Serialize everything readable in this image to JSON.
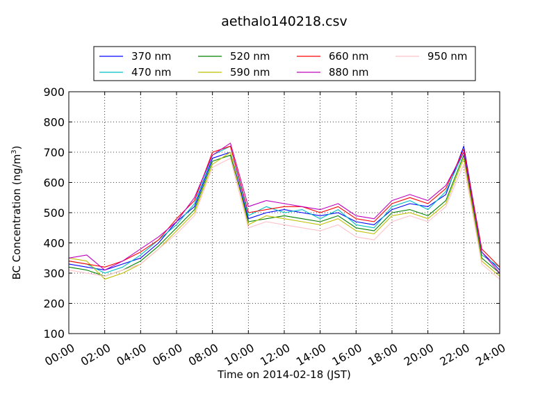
{
  "chart_data": {
    "type": "line",
    "title": "aethalo140218.csv",
    "xlabel": "Time on 2014-02-18 (JST)",
    "ylabel": "BC Concentration (ng/m",
    "ylabel_sup": "3",
    "ylabel_end": ")",
    "xlim": [
      "00:00",
      "24:00"
    ],
    "ylim": [
      100,
      900
    ],
    "grid": true,
    "legend_position": "top",
    "x_ticks": [
      "00:00",
      "02:00",
      "04:00",
      "06:00",
      "08:00",
      "10:00",
      "12:00",
      "14:00",
      "16:00",
      "18:00",
      "20:00",
      "22:00",
      "24:00"
    ],
    "y_ticks": [
      "100",
      "200",
      "300",
      "400",
      "500",
      "600",
      "700",
      "800",
      "900"
    ],
    "x": [
      0,
      1,
      2,
      3,
      4,
      5,
      6,
      7,
      8,
      9,
      10,
      11,
      12,
      13,
      14,
      15,
      16,
      17,
      18,
      19,
      20,
      21,
      22,
      23,
      24
    ],
    "series": [
      {
        "name": "370 nm",
        "color": "#0000ff",
        "values": [
          330,
          320,
          310,
          330,
          350,
          400,
          470,
          520,
          680,
          700,
          480,
          500,
          510,
          500,
          490,
          500,
          470,
          460,
          510,
          530,
          520,
          560,
          720,
          370,
          310
        ]
      },
      {
        "name": "470 nm",
        "color": "#00bfbf",
        "values": [
          340,
          330,
          300,
          320,
          360,
          410,
          460,
          530,
          690,
          720,
          490,
          520,
          500,
          510,
          480,
          510,
          460,
          450,
          520,
          540,
          510,
          570,
          700,
          360,
          320
        ]
      },
      {
        "name": "520 nm",
        "color": "#008000",
        "values": [
          320,
          310,
          290,
          310,
          340,
          390,
          450,
          510,
          670,
          690,
          470,
          480,
          490,
          480,
          470,
          490,
          450,
          440,
          500,
          510,
          490,
          540,
          690,
          350,
          300
        ]
      },
      {
        "name": "590 nm",
        "color": "#bfbf00",
        "values": [
          350,
          340,
          280,
          300,
          330,
          380,
          440,
          500,
          660,
          700,
          460,
          490,
          480,
          470,
          460,
          480,
          440,
          430,
          490,
          500,
          480,
          530,
          680,
          340,
          290
        ]
      },
      {
        "name": "660 nm",
        "color": "#ff0000",
        "values": [
          340,
          330,
          320,
          340,
          370,
          410,
          480,
          540,
          700,
          720,
          500,
          510,
          520,
          520,
          500,
          520,
          480,
          470,
          530,
          550,
          530,
          580,
          710,
          380,
          320
        ]
      },
      {
        "name": "880 nm",
        "color": "#bf00bf",
        "values": [
          350,
          360,
          310,
          340,
          380,
          420,
          470,
          550,
          690,
          730,
          520,
          540,
          530,
          520,
          510,
          530,
          490,
          480,
          540,
          560,
          540,
          590,
          700,
          370,
          300
        ]
      },
      {
        "name": "950 nm",
        "color": "#ffc0cb",
        "values": [
          310,
          300,
          290,
          310,
          330,
          380,
          430,
          490,
          650,
          680,
          450,
          470,
          460,
          450,
          440,
          460,
          420,
          410,
          470,
          490,
          470,
          520,
          660,
          330,
          280
        ]
      }
    ]
  }
}
